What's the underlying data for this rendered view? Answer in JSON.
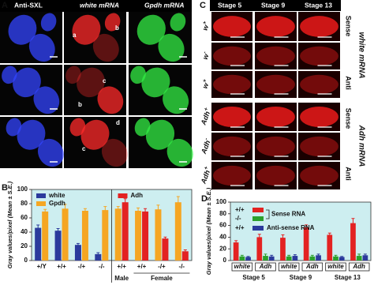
{
  "panel_a": {
    "label": "A",
    "columns": [
      "Anti-SXL",
      "white mRNA",
      "Gpdh mRNA"
    ],
    "markers": [
      "a",
      "b",
      "c",
      "b",
      "d",
      "c"
    ]
  },
  "panel_c": {
    "label": "C",
    "columns": [
      "Stage 5",
      "Stage 9",
      "Stage 13"
    ],
    "rows": [
      {
        "gene": "w",
        "sup": "+"
      },
      {
        "gene": "w",
        "sup": "-"
      },
      {
        "gene": "w",
        "sup": "+"
      },
      {
        "gene": "Adh",
        "sup": "+"
      },
      {
        "gene": "Adh",
        "sup": "-"
      },
      {
        "gene": "Adh",
        "sup": "+"
      }
    ],
    "probe_labels": [
      "Sense",
      "Anti",
      "Sense",
      "Anti"
    ],
    "gene_labels": [
      "white mRNA",
      "Adh mRNA"
    ]
  },
  "chart_data": [
    {
      "type": "bar",
      "label": "B",
      "ylabel": "Gray values/pixel (Mean ± S.E.)",
      "categories": [
        "+/Y",
        "+/+",
        "-/+",
        "-/-",
        "+/+",
        "+/+",
        "-/+",
        "-/-"
      ],
      "group_labels": [
        "Male",
        "Female"
      ],
      "series": [
        {
          "name": "white",
          "color": "#2b3a9c",
          "values": [
            46,
            42,
            22,
            9,
            null,
            null,
            null,
            null
          ],
          "errors": [
            4,
            3,
            2,
            2,
            null,
            null,
            null,
            null
          ]
        },
        {
          "name": "Gpdh",
          "color": "#f5a623",
          "values": [
            69,
            73,
            70,
            71,
            73,
            70,
            72,
            82
          ],
          "errors": [
            3,
            6,
            3,
            5,
            3,
            4,
            6,
            8
          ]
        },
        {
          "name": "Adh",
          "color": "#e32222",
          "values": [
            null,
            null,
            null,
            null,
            82,
            69,
            31,
            13
          ],
          "errors": [
            null,
            null,
            null,
            null,
            5,
            4,
            2,
            2
          ]
        }
      ],
      "ylim": [
        0,
        100
      ],
      "yticks": [
        0,
        20,
        40,
        60,
        80,
        100
      ],
      "background": "#cdeef0"
    },
    {
      "type": "bar",
      "label": "D",
      "ylabel": "Gray values/pixel (Mean ± S.E.)",
      "categories": [
        "white",
        "Adh",
        "white",
        "Adh",
        "white",
        "Adh"
      ],
      "groups": [
        "Stage 5",
        "Stage 9",
        "Stage 13"
      ],
      "annotations": [
        "Sense RNA",
        "Anti-sense RNA"
      ],
      "series": [
        {
          "name": "+/+",
          "color": "#e32222",
          "values": [
            31,
            40,
            39,
            57,
            44,
            64
          ],
          "errors": [
            3,
            5,
            5,
            4,
            3,
            8
          ]
        },
        {
          "name": "-/-",
          "color": "#2ca02c",
          "values": [
            7,
            8,
            7,
            7,
            7,
            8
          ],
          "errors": [
            2,
            3,
            2,
            2,
            2,
            3
          ]
        },
        {
          "name": "+/+",
          "color": "#2b3a9c",
          "values": [
            6,
            7,
            8,
            9,
            6,
            9
          ],
          "errors": [
            1,
            2,
            2,
            2,
            1,
            2
          ]
        }
      ],
      "ylim": [
        0,
        100
      ],
      "yticks": [
        0,
        20,
        40,
        60,
        80,
        100
      ],
      "background": "#cdeef0"
    }
  ]
}
